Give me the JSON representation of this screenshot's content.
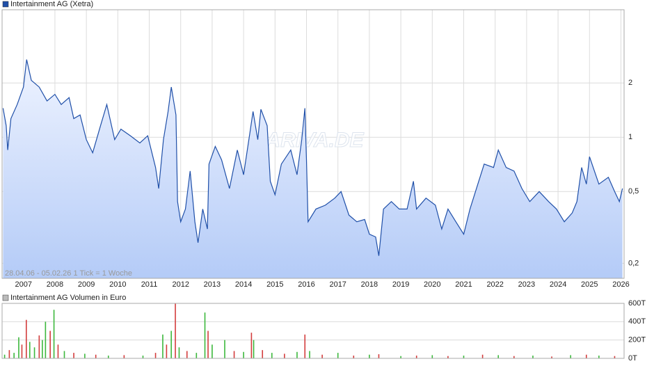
{
  "chart_data": [
    {
      "type": "line",
      "log_scale": true,
      "grid": true,
      "annotation": "28.04.06 - 05.02.26   1 Tick = 1 Woche",
      "watermark": "ARIVA.DE",
      "x": [
        2006.35,
        2006.45,
        2006.5,
        2006.6,
        2006.8,
        2007.0,
        2007.1,
        2007.25,
        2007.5,
        2007.75,
        2008.0,
        2008.2,
        2008.45,
        2008.6,
        2008.8,
        2009.0,
        2009.2,
        2009.45,
        2009.65,
        2009.9,
        2010.1,
        2010.4,
        2010.7,
        2010.95,
        2011.2,
        2011.3,
        2011.45,
        2011.6,
        2011.7,
        2011.85,
        2011.9,
        2012.0,
        2012.15,
        2012.3,
        2012.45,
        2012.55,
        2012.7,
        2012.85,
        2012.9,
        2013.1,
        2013.3,
        2013.55,
        2013.8,
        2014.0,
        2014.2,
        2014.3,
        2014.45,
        2014.55,
        2014.75,
        2014.85,
        2015.0,
        2015.2,
        2015.5,
        2015.7,
        2015.85,
        2015.95,
        2016.0,
        2016.05,
        2016.3,
        2016.6,
        2016.9,
        2017.1,
        2017.35,
        2017.6,
        2017.85,
        2018.0,
        2018.2,
        2018.3,
        2018.45,
        2018.7,
        2018.95,
        2019.2,
        2019.4,
        2019.5,
        2019.8,
        2020.1,
        2020.3,
        2020.5,
        2020.75,
        2021.0,
        2021.2,
        2021.45,
        2021.65,
        2021.95,
        2022.1,
        2022.35,
        2022.6,
        2022.85,
        2023.1,
        2023.4,
        2023.7,
        2023.95,
        2024.2,
        2024.45,
        2024.6,
        2024.75,
        2024.9,
        2025.0,
        2025.3,
        2025.6,
        2025.8,
        2025.95,
        2026.05
      ],
      "series": [
        {
          "name": "Intertainment AG (Xetra)",
          "color": "#1f4fa8",
          "values": [
            1.45,
            1.16,
            0.85,
            1.27,
            1.52,
            1.9,
            2.7,
            2.07,
            1.9,
            1.59,
            1.73,
            1.52,
            1.66,
            1.27,
            1.33,
            0.97,
            0.82,
            1.16,
            1.52,
            0.97,
            1.11,
            1.02,
            0.93,
            1.02,
            0.68,
            0.52,
            0.97,
            1.39,
            1.9,
            1.33,
            0.44,
            0.34,
            0.4,
            0.65,
            0.34,
            0.26,
            0.4,
            0.31,
            0.71,
            0.89,
            0.75,
            0.52,
            0.85,
            0.62,
            1.06,
            1.39,
            0.97,
            1.43,
            1.16,
            0.57,
            0.48,
            0.71,
            0.85,
            0.62,
            0.97,
            1.45,
            0.75,
            0.34,
            0.4,
            0.42,
            0.46,
            0.5,
            0.37,
            0.34,
            0.35,
            0.29,
            0.28,
            0.22,
            0.4,
            0.44,
            0.4,
            0.4,
            0.57,
            0.4,
            0.46,
            0.42,
            0.31,
            0.4,
            0.34,
            0.29,
            0.4,
            0.55,
            0.71,
            0.68,
            0.85,
            0.68,
            0.65,
            0.52,
            0.44,
            0.5,
            0.44,
            0.4,
            0.34,
            0.38,
            0.44,
            0.68,
            0.55,
            0.78,
            0.55,
            0.6,
            0.5,
            0.44,
            0.52
          ]
        }
      ],
      "xlim": [
        2006.32,
        2026.1
      ],
      "ylim": [
        0.165,
        5.1
      ],
      "xticks": [
        2007,
        2008,
        2009,
        2010,
        2011,
        2012,
        2013,
        2014,
        2015,
        2016,
        2017,
        2018,
        2019,
        2020,
        2021,
        2022,
        2023,
        2024,
        2025,
        2026
      ],
      "yticks": [
        {
          "value": 0.2,
          "label": "0,2"
        },
        {
          "value": 0.5,
          "label": "0,5"
        },
        1,
        2
      ]
    },
    {
      "type": "bar",
      "grid": true,
      "x": [
        2006.4,
        2006.55,
        2006.7,
        2006.85,
        2006.95,
        2007.09,
        2007.2,
        2007.35,
        2007.5,
        2007.6,
        2007.7,
        2007.85,
        2007.97,
        2008.1,
        2008.3,
        2008.6,
        2008.95,
        2009.3,
        2009.7,
        2010.2,
        2010.8,
        2011.2,
        2011.43,
        2011.55,
        2011.7,
        2011.83,
        2011.95,
        2012.2,
        2012.5,
        2012.77,
        2012.87,
        2013.0,
        2013.4,
        2013.7,
        2014.0,
        2014.25,
        2014.32,
        2014.6,
        2014.9,
        2015.3,
        2015.7,
        2015.95,
        2016.1,
        2016.5,
        2017.0,
        2017.5,
        2018.0,
        2018.3,
        2019.0,
        2019.5,
        2020.0,
        2020.5,
        2021.0,
        2021.6,
        2022.1,
        2022.6,
        2023.2,
        2023.8,
        2024.4,
        2024.9,
        2025.3,
        2025.8
      ],
      "series": [
        {
          "name": "Intertainment AG Volumen in Euro",
          "color": "#bbbbbb",
          "values": [
            40000,
            90000,
            60000,
            230000,
            150000,
            420000,
            180000,
            120000,
            250000,
            200000,
            400000,
            300000,
            530000,
            150000,
            80000,
            60000,
            50000,
            40000,
            30000,
            35000,
            30000,
            60000,
            260000,
            150000,
            300000,
            600000,
            120000,
            80000,
            60000,
            500000,
            300000,
            150000,
            200000,
            80000,
            70000,
            280000,
            200000,
            90000,
            60000,
            50000,
            70000,
            260000,
            80000,
            40000,
            60000,
            30000,
            40000,
            45000,
            25000,
            30000,
            35000,
            25000,
            30000,
            40000,
            35000,
            25000,
            30000,
            20000,
            35000,
            40000,
            30000,
            25000
          ],
          "colors": [
            "#3cb83c",
            "#d33c3c",
            "#3cb83c",
            "#3cb83c",
            "#d33c3c",
            "#d33c3c",
            "#3cb83c",
            "#3cb83c",
            "#d33c3c",
            "#3cb83c",
            "#3cb83c",
            "#d33c3c",
            "#3cb83c",
            "#d33c3c",
            "#3cb83c",
            "#d33c3c",
            "#3cb83c",
            "#d33c3c",
            "#3cb83c",
            "#d33c3c",
            "#3cb83c",
            "#d33c3c",
            "#3cb83c",
            "#d33c3c",
            "#3cb83c",
            "#d33c3c",
            "#3cb83c",
            "#d33c3c",
            "#3cb83c",
            "#3cb83c",
            "#d33c3c",
            "#3cb83c",
            "#3cb83c",
            "#d33c3c",
            "#3cb83c",
            "#d33c3c",
            "#3cb83c",
            "#d33c3c",
            "#3cb83c",
            "#d33c3c",
            "#3cb83c",
            "#d33c3c",
            "#3cb83c",
            "#d33c3c",
            "#3cb83c",
            "#d33c3c",
            "#3cb83c",
            "#d33c3c",
            "#3cb83c",
            "#d33c3c",
            "#3cb83c",
            "#d33c3c",
            "#3cb83c",
            "#d33c3c",
            "#3cb83c",
            "#d33c3c",
            "#3cb83c",
            "#d33c3c",
            "#3cb83c",
            "#d33c3c",
            "#3cb83c",
            "#d33c3c"
          ]
        }
      ],
      "xlim": [
        2006.32,
        2026.1
      ],
      "ylim": [
        0,
        600000
      ],
      "yticks": [
        {
          "value": 0,
          "label": "0T"
        },
        {
          "value": 200000,
          "label": "200T"
        },
        {
          "value": 400000,
          "label": "400T"
        },
        {
          "value": 600000,
          "label": "600T"
        }
      ]
    }
  ]
}
